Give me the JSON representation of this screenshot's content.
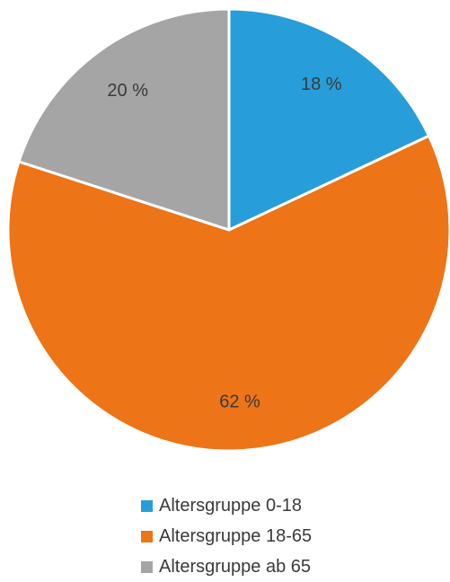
{
  "chart_data": {
    "type": "pie",
    "title": "",
    "categories": [
      "Altersgruppe 0-18",
      "Altersgruppe 18-65",
      "Altersgruppe ab 65"
    ],
    "values": [
      18,
      62,
      20
    ],
    "data_labels": [
      "18 %",
      "62 %",
      "20 %"
    ],
    "colors": [
      "#279ed9",
      "#ed7417",
      "#a5a5a5"
    ],
    "start": "top, clockwise",
    "legend_position": "bottom"
  }
}
